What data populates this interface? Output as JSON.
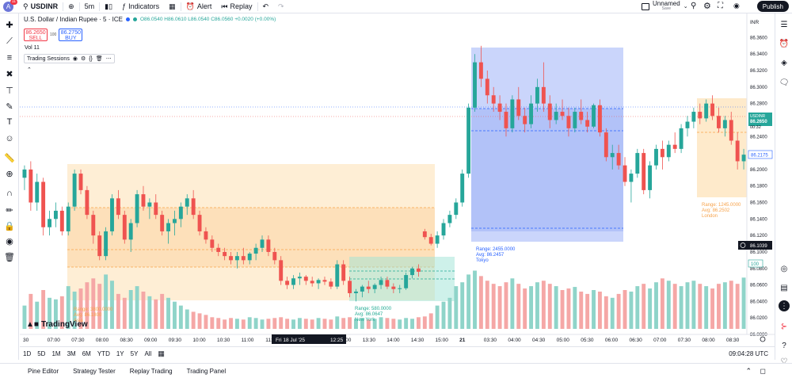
{
  "topbar": {
    "avatar_letter": "A",
    "avatar_badge": "11",
    "symbol": "USDINR",
    "interval": "5m",
    "indicators_label": "Indicators",
    "alert_label": "Alert",
    "replay_label": "Replay",
    "layout_name": "Unnamed",
    "layout_status": "Save",
    "publish_label": "Publish"
  },
  "legend": {
    "title": "U.S. Dollar / Indian Rupee · 5 · ICE",
    "ohlc": "O86.0540 H86.0610 L86.0540 C86.0560 +0.0020 (+0.00%)"
  },
  "trade": {
    "sell_price": "86.2650",
    "sell_label": "SELL",
    "spread": "100",
    "buy_price": "86.2750",
    "buy_label": "BUY"
  },
  "volume_label": "Vol  11",
  "sessions_label": "Trading Sessions",
  "currency": "INR",
  "price_axis": {
    "ticks": [
      "86.3600",
      "86.3400",
      "86.3200",
      "86.3000",
      "86.2800",
      "86.2600",
      "86.2400",
      "86.2200",
      "86.2000",
      "86.1800",
      "86.1600",
      "86.1400",
      "86.1200",
      "86.1000",
      "86.0800",
      "86.0600",
      "86.0400",
      "86.0200",
      "86.0000"
    ],
    "usdinr_tag": "USDINR",
    "usdinr_price": "86.2650",
    "countdown": "00:32",
    "level_price": "86.2175",
    "crosshair_price": "86.1039",
    "vol_tag": "100"
  },
  "time_axis": {
    "ticks": [
      "30",
      "07:00",
      "07:30",
      "08:00",
      "08:30",
      "09:00",
      "09:30",
      "10:00",
      "10:30",
      "11:00",
      "11:30",
      "12:00",
      "12:30",
      "13:00",
      "13:30",
      "14:00",
      "14:30",
      "15:00",
      "21",
      "03:30",
      "04:00",
      "04:30",
      "05:00",
      "05:30",
      "06:00",
      "06:30",
      "07:00",
      "07:30",
      "08:00",
      "08:30"
    ],
    "date_label": "Fri 18 Jul '25",
    "time_label": "12:25"
  },
  "sessions": {
    "day1_session": {
      "range": "Range: 3800.0000",
      "avg": "Avg: 86.1800",
      "name": "Asia"
    },
    "ny": {
      "range": "Range: 580.0000",
      "avg": "Avg: 86.0647",
      "name": "New York"
    },
    "tokyo": {
      "range": "Range: 2455.0000",
      "avg": "Avg: 86.2457",
      "name": "Tokyo"
    },
    "london": {
      "range": "Range: 1245.0000",
      "avg": "Avg: 86.2502",
      "name": "London"
    }
  },
  "logo_text": "TradingView",
  "timeframes": [
    "1D",
    "5D",
    "1M",
    "3M",
    "6M",
    "YTD",
    "1Y",
    "5Y",
    "All"
  ],
  "clock": "09:04:28 UTC",
  "footer_tabs": [
    "Pine Editor",
    "Strategy Tester",
    "Replay Trading",
    "Trading Panel"
  ],
  "colors": {
    "up": "#26a69a",
    "down": "#ef5350",
    "accent": "#2962ff"
  },
  "chart_data": {
    "type": "candlestick",
    "x_range": [
      "06:30",
      "08:45"
    ],
    "ylim": [
      86.0,
      86.37
    ],
    "candles": [
      {
        "o": 86.19,
        "h": 86.205,
        "l": 86.175,
        "c": 86.2
      },
      {
        "o": 86.2,
        "h": 86.21,
        "l": 86.15,
        "c": 86.16
      },
      {
        "o": 86.16,
        "h": 86.195,
        "l": 86.15,
        "c": 86.185
      },
      {
        "o": 86.185,
        "h": 86.19,
        "l": 86.12,
        "c": 86.13
      },
      {
        "o": 86.13,
        "h": 86.15,
        "l": 86.12,
        "c": 86.14
      },
      {
        "o": 86.14,
        "h": 86.16,
        "l": 86.13,
        "c": 86.15
      },
      {
        "o": 86.15,
        "h": 86.155,
        "l": 86.12,
        "c": 86.125
      },
      {
        "o": 86.125,
        "h": 86.16,
        "l": 86.12,
        "c": 86.155
      },
      {
        "o": 86.155,
        "h": 86.2,
        "l": 86.15,
        "c": 86.195
      },
      {
        "o": 86.195,
        "h": 86.2,
        "l": 86.17,
        "c": 86.175
      },
      {
        "o": 86.175,
        "h": 86.18,
        "l": 86.14,
        "c": 86.145
      },
      {
        "o": 86.145,
        "h": 86.15,
        "l": 86.11,
        "c": 86.12
      },
      {
        "o": 86.12,
        "h": 86.125,
        "l": 86.09,
        "c": 86.095
      },
      {
        "o": 86.095,
        "h": 86.13,
        "l": 86.09,
        "c": 86.125
      },
      {
        "o": 86.125,
        "h": 86.17,
        "l": 86.12,
        "c": 86.165
      },
      {
        "o": 86.165,
        "h": 86.175,
        "l": 86.14,
        "c": 86.145
      },
      {
        "o": 86.145,
        "h": 86.15,
        "l": 86.11,
        "c": 86.115
      },
      {
        "o": 86.115,
        "h": 86.14,
        "l": 86.1,
        "c": 86.135
      },
      {
        "o": 86.135,
        "h": 86.175,
        "l": 86.13,
        "c": 86.17
      },
      {
        "o": 86.17,
        "h": 86.18,
        "l": 86.15,
        "c": 86.155
      },
      {
        "o": 86.155,
        "h": 86.165,
        "l": 86.14,
        "c": 86.16
      },
      {
        "o": 86.16,
        "h": 86.17,
        "l": 86.14,
        "c": 86.145
      },
      {
        "o": 86.145,
        "h": 86.15,
        "l": 86.12,
        "c": 86.125
      },
      {
        "o": 86.125,
        "h": 86.14,
        "l": 86.11,
        "c": 86.135
      },
      {
        "o": 86.135,
        "h": 86.15,
        "l": 86.12,
        "c": 86.14
      },
      {
        "o": 86.14,
        "h": 86.16,
        "l": 86.13,
        "c": 86.155
      },
      {
        "o": 86.155,
        "h": 86.17,
        "l": 86.145,
        "c": 86.165
      },
      {
        "o": 86.165,
        "h": 86.175,
        "l": 86.14,
        "c": 86.145
      },
      {
        "o": 86.145,
        "h": 86.15,
        "l": 86.12,
        "c": 86.125
      },
      {
        "o": 86.125,
        "h": 86.13,
        "l": 86.11,
        "c": 86.115
      },
      {
        "o": 86.115,
        "h": 86.12,
        "l": 86.1,
        "c": 86.105
      },
      {
        "o": 86.105,
        "h": 86.11,
        "l": 86.095,
        "c": 86.1
      },
      {
        "o": 86.1,
        "h": 86.105,
        "l": 86.09,
        "c": 86.095
      },
      {
        "o": 86.095,
        "h": 86.1,
        "l": 86.085,
        "c": 86.09
      },
      {
        "o": 86.09,
        "h": 86.1,
        "l": 86.08,
        "c": 86.095
      },
      {
        "o": 86.095,
        "h": 86.105,
        "l": 86.085,
        "c": 86.09
      },
      {
        "o": 86.09,
        "h": 86.1,
        "l": 86.085,
        "c": 86.098
      },
      {
        "o": 86.098,
        "h": 86.11,
        "l": 86.09,
        "c": 86.105
      },
      {
        "o": 86.105,
        "h": 86.12,
        "l": 86.1,
        "c": 86.115
      },
      {
        "o": 86.115,
        "h": 86.12,
        "l": 86.095,
        "c": 86.1
      },
      {
        "o": 86.1,
        "h": 86.105,
        "l": 86.085,
        "c": 86.09
      },
      {
        "o": 86.09,
        "h": 86.095,
        "l": 86.06,
        "c": 86.065
      },
      {
        "o": 86.065,
        "h": 86.07,
        "l": 86.055,
        "c": 86.06
      },
      {
        "o": 86.06,
        "h": 86.072,
        "l": 86.055,
        "c": 86.068
      },
      {
        "o": 86.068,
        "h": 86.075,
        "l": 86.06,
        "c": 86.07
      },
      {
        "o": 86.07,
        "h": 86.072,
        "l": 86.06,
        "c": 86.065
      },
      {
        "o": 86.065,
        "h": 86.07,
        "l": 86.058,
        "c": 86.062
      },
      {
        "o": 86.062,
        "h": 86.068,
        "l": 86.055,
        "c": 86.066
      },
      {
        "o": 86.066,
        "h": 86.07,
        "l": 86.06,
        "c": 86.064
      },
      {
        "o": 86.064,
        "h": 86.068,
        "l": 86.055,
        "c": 86.058
      },
      {
        "o": 86.058,
        "h": 86.09,
        "l": 86.055,
        "c": 86.085
      },
      {
        "o": 86.085,
        "h": 86.09,
        "l": 86.06,
        "c": 86.065
      },
      {
        "o": 86.065,
        "h": 86.07,
        "l": 86.045,
        "c": 86.05
      },
      {
        "o": 86.05,
        "h": 86.055,
        "l": 86.04,
        "c": 86.052
      },
      {
        "o": 86.052,
        "h": 86.06,
        "l": 86.045,
        "c": 86.058
      },
      {
        "o": 86.058,
        "h": 86.065,
        "l": 86.05,
        "c": 86.055
      },
      {
        "o": 86.055,
        "h": 86.062,
        "l": 86.05,
        "c": 86.06
      },
      {
        "o": 86.06,
        "h": 86.07,
        "l": 86.055,
        "c": 86.066
      },
      {
        "o": 86.066,
        "h": 86.07,
        "l": 86.055,
        "c": 86.058
      },
      {
        "o": 86.058,
        "h": 86.062,
        "l": 86.05,
        "c": 86.055
      },
      {
        "o": 86.055,
        "h": 86.06,
        "l": 86.05,
        "c": 86.056
      },
      {
        "o": 86.056,
        "h": 86.075,
        "l": 86.054,
        "c": 86.072
      },
      {
        "o": 86.072,
        "h": 86.082,
        "l": 86.068,
        "c": 86.08
      },
      {
        "o": 86.08,
        "h": 86.085,
        "l": 86.07,
        "c": 86.076
      },
      {
        "o": 86.125,
        "h": 86.128,
        "l": 86.115,
        "c": 86.118
      },
      {
        "o": 86.118,
        "h": 86.122,
        "l": 86.108,
        "c": 86.11
      },
      {
        "o": 86.11,
        "h": 86.125,
        "l": 86.105,
        "c": 86.12
      },
      {
        "o": 86.12,
        "h": 86.14,
        "l": 86.115,
        "c": 86.135
      },
      {
        "o": 86.135,
        "h": 86.15,
        "l": 86.13,
        "c": 86.145
      },
      {
        "o": 86.145,
        "h": 86.165,
        "l": 86.14,
        "c": 86.16
      },
      {
        "o": 86.16,
        "h": 86.2,
        "l": 86.155,
        "c": 86.195
      },
      {
        "o": 86.195,
        "h": 86.28,
        "l": 86.19,
        "c": 86.275
      },
      {
        "o": 86.275,
        "h": 86.34,
        "l": 86.27,
        "c": 86.33
      },
      {
        "o": 86.33,
        "h": 86.35,
        "l": 86.3,
        "c": 86.31
      },
      {
        "o": 86.31,
        "h": 86.32,
        "l": 86.28,
        "c": 86.29
      },
      {
        "o": 86.29,
        "h": 86.3,
        "l": 86.27,
        "c": 86.28
      },
      {
        "o": 86.28,
        "h": 86.29,
        "l": 86.26,
        "c": 86.27
      },
      {
        "o": 86.27,
        "h": 86.28,
        "l": 86.24,
        "c": 86.25
      },
      {
        "o": 86.25,
        "h": 86.29,
        "l": 86.245,
        "c": 86.285
      },
      {
        "o": 86.285,
        "h": 86.3,
        "l": 86.26,
        "c": 86.265
      },
      {
        "o": 86.265,
        "h": 86.275,
        "l": 86.245,
        "c": 86.255
      },
      {
        "o": 86.255,
        "h": 86.29,
        "l": 86.25,
        "c": 86.28
      },
      {
        "o": 86.28,
        "h": 86.31,
        "l": 86.27,
        "c": 86.3
      },
      {
        "o": 86.3,
        "h": 86.33,
        "l": 86.27,
        "c": 86.28
      },
      {
        "o": 86.28,
        "h": 86.29,
        "l": 86.25,
        "c": 86.26
      },
      {
        "o": 86.26,
        "h": 86.28,
        "l": 86.255,
        "c": 86.27
      },
      {
        "o": 86.27,
        "h": 86.285,
        "l": 86.26,
        "c": 86.265
      },
      {
        "o": 86.265,
        "h": 86.275,
        "l": 86.24,
        "c": 86.25
      },
      {
        "o": 86.25,
        "h": 86.275,
        "l": 86.245,
        "c": 86.27
      },
      {
        "o": 86.27,
        "h": 86.285,
        "l": 86.255,
        "c": 86.26
      },
      {
        "o": 86.26,
        "h": 86.27,
        "l": 86.245,
        "c": 86.252
      },
      {
        "o": 86.252,
        "h": 86.28,
        "l": 86.25,
        "c": 86.278
      },
      {
        "o": 86.278,
        "h": 86.285,
        "l": 86.24,
        "c": 86.245
      },
      {
        "o": 86.245,
        "h": 86.25,
        "l": 86.21,
        "c": 86.215
      },
      {
        "o": 86.215,
        "h": 86.23,
        "l": 86.2,
        "c": 86.22
      },
      {
        "o": 86.22,
        "h": 86.23,
        "l": 86.2,
        "c": 86.205
      },
      {
        "o": 86.205,
        "h": 86.215,
        "l": 86.18,
        "c": 86.185
      },
      {
        "o": 86.185,
        "h": 86.2,
        "l": 86.16,
        "c": 86.195
      },
      {
        "o": 86.195,
        "h": 86.225,
        "l": 86.19,
        "c": 86.22
      },
      {
        "o": 86.22,
        "h": 86.225,
        "l": 86.17,
        "c": 86.175
      },
      {
        "o": 86.175,
        "h": 86.21,
        "l": 86.165,
        "c": 86.205
      },
      {
        "o": 86.205,
        "h": 86.23,
        "l": 86.2,
        "c": 86.225
      },
      {
        "o": 86.225,
        "h": 86.235,
        "l": 86.2,
        "c": 86.215
      },
      {
        "o": 86.215,
        "h": 86.235,
        "l": 86.21,
        "c": 86.23
      },
      {
        "o": 86.23,
        "h": 86.245,
        "l": 86.22,
        "c": 86.225
      },
      {
        "o": 86.225,
        "h": 86.255,
        "l": 86.22,
        "c": 86.25
      },
      {
        "o": 86.25,
        "h": 86.265,
        "l": 86.24,
        "c": 86.258
      },
      {
        "o": 86.258,
        "h": 86.275,
        "l": 86.25,
        "c": 86.27
      },
      {
        "o": 86.27,
        "h": 86.28,
        "l": 86.255,
        "c": 86.262
      },
      {
        "o": 86.262,
        "h": 86.285,
        "l": 86.258,
        "c": 86.28
      },
      {
        "o": 86.28,
        "h": 86.29,
        "l": 86.26,
        "c": 86.265
      },
      {
        "o": 86.265,
        "h": 86.275,
        "l": 86.245,
        "c": 86.25
      },
      {
        "o": 86.25,
        "h": 86.265,
        "l": 86.24,
        "c": 86.26
      },
      {
        "o": 86.26,
        "h": 86.27,
        "l": 86.23,
        "c": 86.235
      },
      {
        "o": 86.235,
        "h": 86.245,
        "l": 86.2,
        "c": 86.21
      },
      {
        "o": 86.21,
        "h": 86.225,
        "l": 86.2,
        "c": 86.218
      }
    ],
    "volumes": [
      30,
      45,
      35,
      50,
      40,
      38,
      42,
      55,
      48,
      52,
      60,
      65,
      58,
      70,
      62,
      45,
      40,
      50,
      55,
      48,
      42,
      38,
      45,
      40,
      35,
      30,
      25,
      22,
      20,
      18,
      15,
      14,
      12,
      14,
      13,
      12,
      15,
      14,
      12,
      13,
      14,
      15,
      13,
      12,
      14,
      13,
      12,
      14,
      13,
      12,
      16,
      14,
      15,
      13,
      14,
      12,
      13,
      15,
      14,
      13,
      12,
      14,
      13,
      15,
      16,
      20,
      30,
      35,
      40,
      55,
      60,
      70,
      75,
      68,
      62,
      58,
      55,
      60,
      65,
      58,
      52,
      55,
      60,
      62,
      58,
      55,
      50,
      52,
      54,
      48,
      45,
      50,
      48,
      42,
      40,
      45,
      50,
      48,
      55,
      58,
      52,
      60,
      65,
      62,
      58,
      55,
      60,
      62,
      58,
      55,
      52,
      58,
      60,
      62,
      58,
      66
    ],
    "volume_ylim": [
      0,
      100
    ],
    "vol_colors": "up/down by candle"
  }
}
